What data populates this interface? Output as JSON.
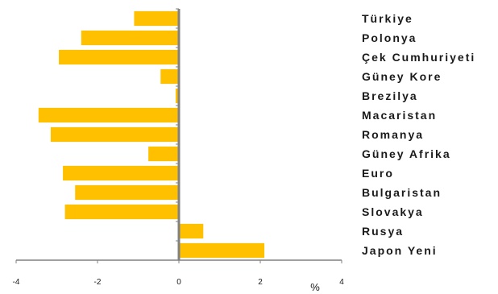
{
  "chart_data": {
    "type": "bar",
    "orientation": "horizontal",
    "categories": [
      "Türkiye",
      "Polonya",
      "Çek Cumhuriyeti",
      "Güney Kore",
      "Brezilya",
      "Macaristan",
      "Romanya",
      "Güney Afrika",
      "Euro",
      "Bulgaristan",
      "Slovakya",
      "Rusya",
      "Japon Yeni"
    ],
    "values": [
      -1.1,
      -2.4,
      -2.95,
      -0.45,
      -0.08,
      -3.45,
      -3.15,
      -0.75,
      -2.85,
      -2.55,
      -2.8,
      0.6,
      2.1
    ],
    "xlim": [
      -4,
      4
    ],
    "xticks": [
      -4,
      -2,
      0,
      2,
      4
    ],
    "tick_labels": [
      "-4",
      "-2",
      "0",
      "2",
      "4"
    ],
    "unit_label": "%",
    "bar_color": "#FFC000",
    "axis_color": "#808080",
    "grid": false,
    "legend": false
  }
}
